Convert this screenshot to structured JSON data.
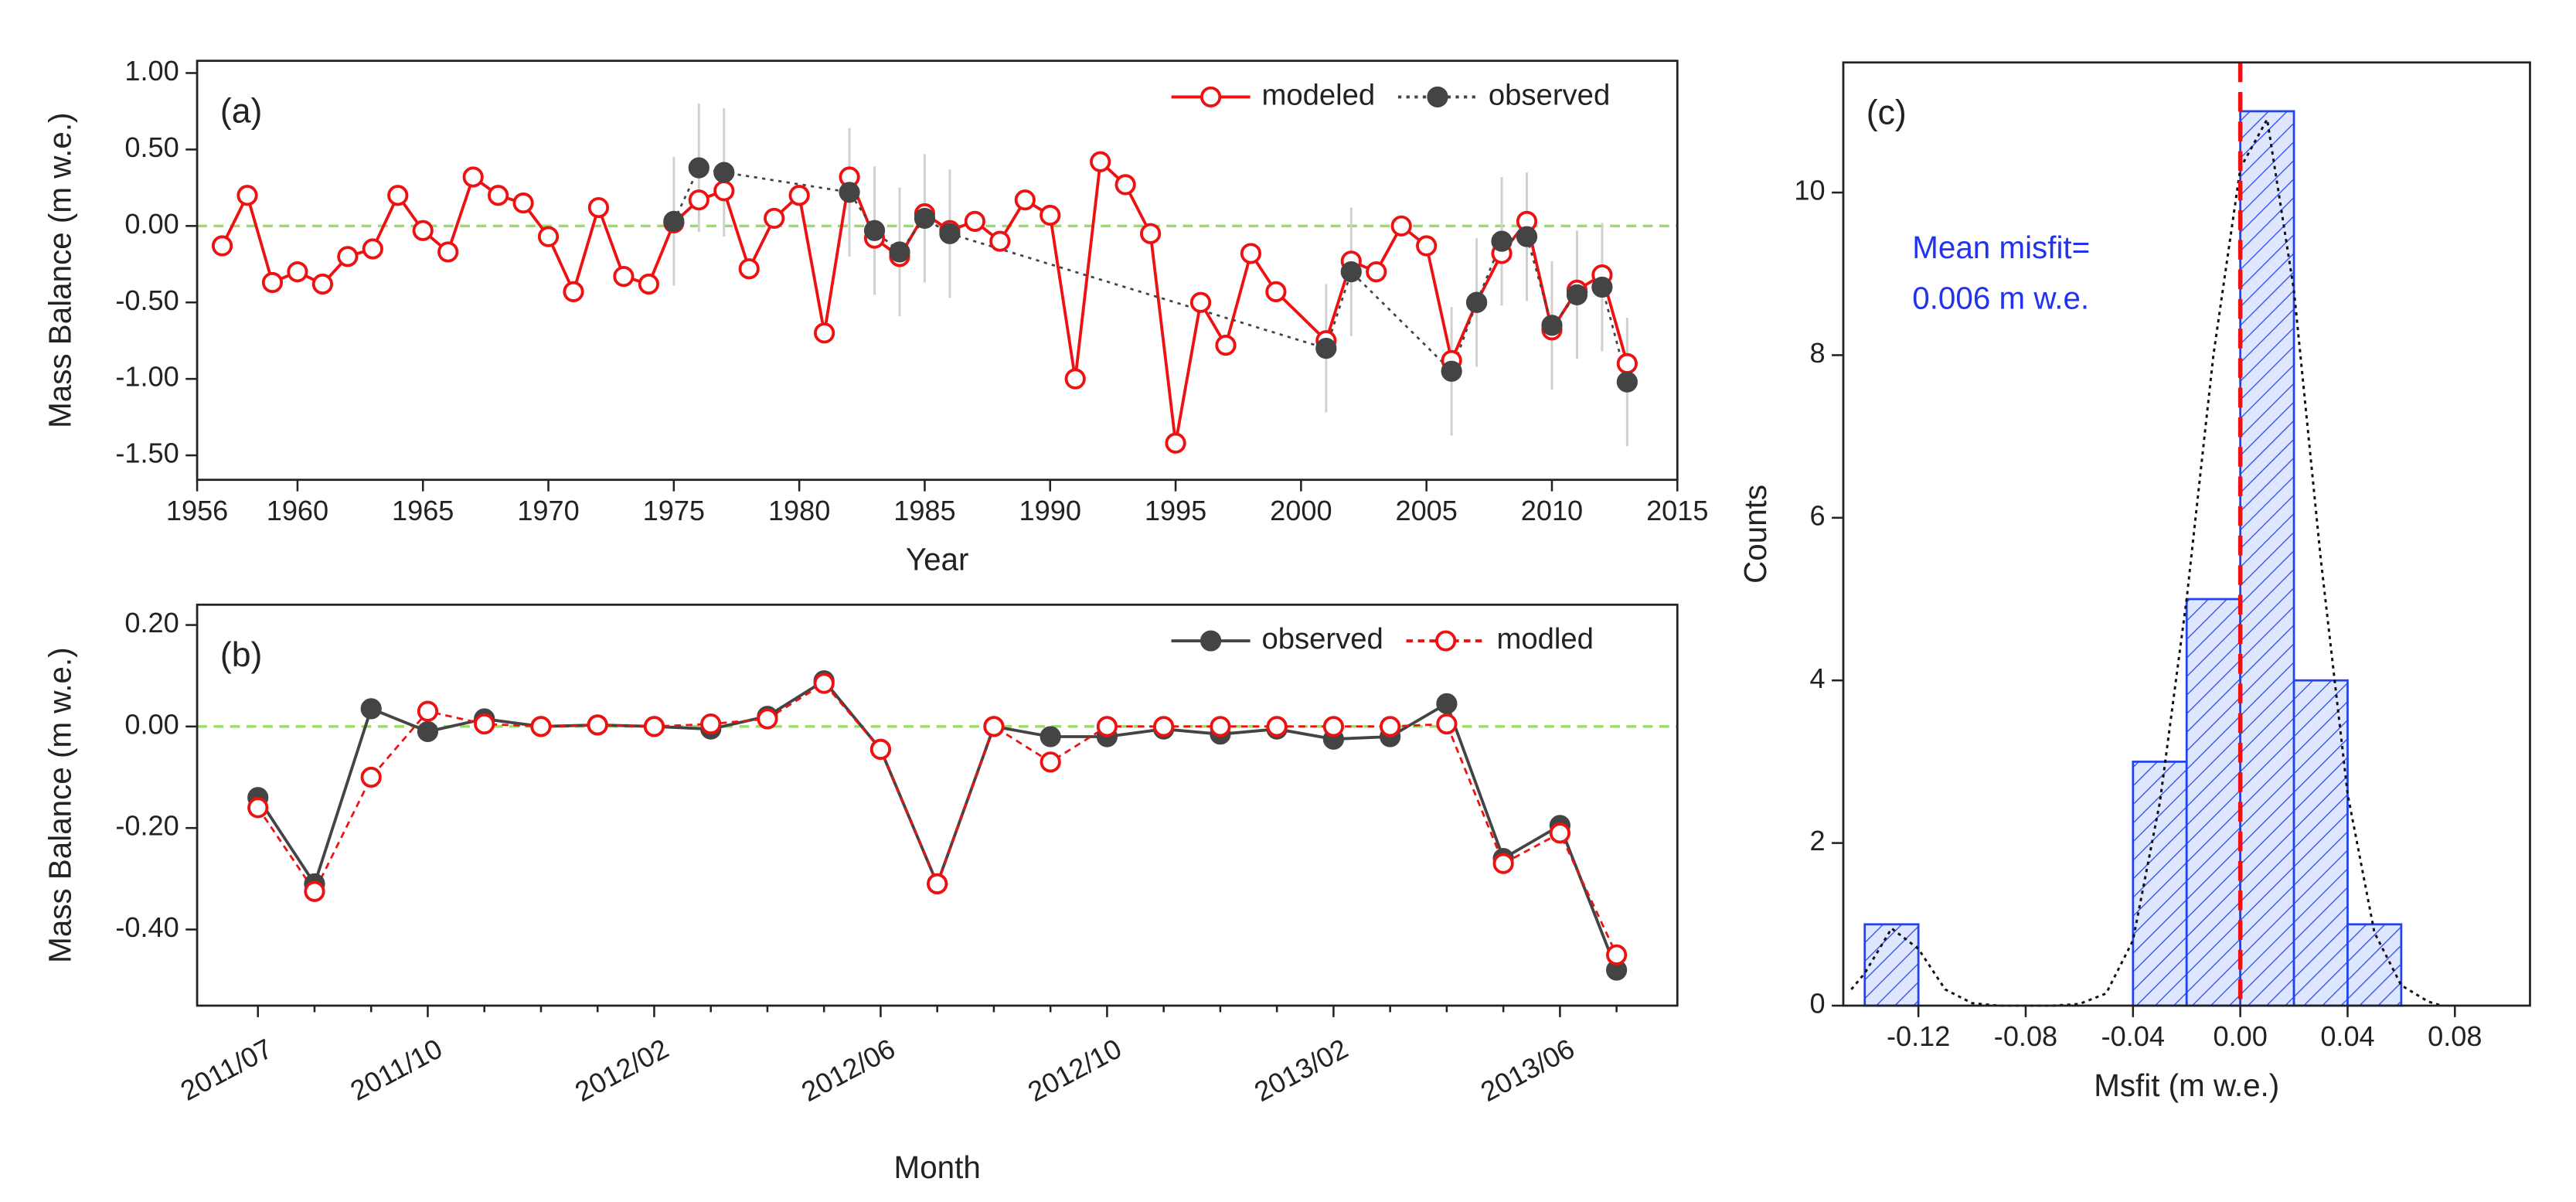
{
  "chart_data": [
    {
      "type": "line",
      "panel_label": "(a)",
      "xlabel": "Year",
      "ylabel": "Mass Balance (m w.e.)",
      "xlim": [
        1956,
        2015
      ],
      "xticks": [
        1956,
        1960,
        1965,
        1970,
        1975,
        1980,
        1985,
        1990,
        1995,
        2000,
        2005,
        2010,
        2015
      ],
      "ylim": [
        -1.66,
        1.08
      ],
      "yticks": [
        {
          "value": 1,
          "label": "1.00"
        },
        {
          "value": 0.5,
          "label": "0.50"
        },
        {
          "value": 0,
          "label": "0.00"
        },
        {
          "value": -0.5,
          "label": "-0.50"
        },
        {
          "value": -1,
          "label": "-1.00"
        },
        {
          "value": -1.5,
          "label": "-1.50"
        }
      ],
      "reference_line": 0,
      "reference_color": "#99dd66",
      "legend": "upper right",
      "series": [
        {
          "name": "modeled",
          "color": "#ee1111",
          "style": "solid",
          "marker": "open",
          "x": [
            1957,
            1958,
            1959,
            1960,
            1961,
            1962,
            1963,
            1964,
            1965,
            1966,
            1967,
            1968,
            1969,
            1970,
            1971,
            1972,
            1973,
            1974,
            1975,
            1976,
            1977,
            1978,
            1979,
            1980,
            1981,
            1982,
            1983,
            1984,
            1985,
            1986,
            1987,
            1988,
            1989,
            1990,
            1991,
            1992,
            1993,
            1994,
            1995,
            1996,
            1997,
            1998,
            1999,
            2001,
            2002,
            2003,
            2004,
            2005,
            2006,
            2007,
            2008,
            2009,
            2010,
            2011,
            2012,
            2013
          ],
          "values": [
            -0.13,
            0.2,
            -0.37,
            -0.3,
            -0.38,
            -0.2,
            -0.15,
            0.2,
            -0.03,
            -0.17,
            0.32,
            0.2,
            0.15,
            -0.07,
            -0.43,
            0.12,
            -0.33,
            -0.38,
            0.02,
            0.17,
            0.23,
            -0.28,
            0.05,
            0.2,
            -0.7,
            0.32,
            -0.08,
            -0.2,
            0.08,
            -0.03,
            0.03,
            -0.1,
            0.17,
            0.07,
            -1.0,
            0.42,
            0.27,
            -0.05,
            -1.42,
            -0.5,
            -0.78,
            -0.18,
            -0.43,
            -0.75,
            -0.23,
            -0.3,
            0.0,
            -0.13,
            -0.88,
            -0.5,
            -0.18,
            0.03,
            -0.68,
            -0.42,
            -0.32,
            -0.9
          ]
        },
        {
          "name": "observed",
          "color": "#444444",
          "style": "dotted",
          "marker": "filled",
          "error_color": "#d0d0d0",
          "x": [
            1975,
            1976,
            1977,
            1982,
            1983,
            1984,
            1985,
            1986,
            2001,
            2002,
            2006,
            2007,
            2008,
            2009,
            2010,
            2011,
            2012,
            2013
          ],
          "values": [
            0.03,
            0.38,
            0.35,
            0.22,
            -0.03,
            -0.17,
            0.05,
            -0.05,
            -0.8,
            -0.3,
            -0.95,
            -0.5,
            -0.1,
            -0.07,
            -0.65,
            -0.45,
            -0.4,
            -1.02
          ],
          "errors": [
            0.42,
            0.42,
            0.42,
            0.42,
            0.42,
            0.42,
            0.42,
            0.42,
            0.42,
            0.42,
            0.42,
            0.42,
            0.42,
            0.42,
            0.42,
            0.42,
            0.42,
            0.42
          ]
        }
      ]
    },
    {
      "type": "line",
      "panel_label": "(b)",
      "xlabel": "Month",
      "ylabel": "Mass Balance (m w.e.)",
      "categories": [
        "2011/07",
        null,
        null,
        "2011/10",
        null,
        null,
        null,
        "2012/02",
        null,
        null,
        null,
        "2012/06",
        null,
        null,
        null,
        "2012/10",
        null,
        null,
        null,
        "2013/02",
        null,
        null,
        null,
        "2013/06",
        null
      ],
      "ylim": [
        -0.55,
        0.24
      ],
      "yticks": [
        {
          "value": 0.2,
          "label": "0.20"
        },
        {
          "value": 0,
          "label": "0.00"
        },
        {
          "value": -0.2,
          "label": "-0.20"
        },
        {
          "value": -0.4,
          "label": "-0.40"
        }
      ],
      "reference_line": 0,
      "reference_color": "#99dd66",
      "legend": "upper right",
      "series": [
        {
          "name": "observed",
          "color": "#444444",
          "style": "solid",
          "marker": "filled",
          "values": [
            -0.14,
            -0.31,
            0.035,
            -0.01,
            0.015,
            0.0,
            0.003,
            0.0,
            -0.005,
            0.02,
            0.09,
            -0.045,
            -0.31,
            0.0,
            -0.02,
            -0.02,
            -0.005,
            -0.015,
            -0.005,
            -0.025,
            -0.02,
            0.045,
            -0.26,
            -0.195,
            -0.48
          ]
        },
        {
          "name": "modled",
          "color": "#ee1111",
          "style": "dashed",
          "marker": "open",
          "values": [
            -0.16,
            -0.325,
            -0.1,
            0.03,
            0.005,
            0.0,
            0.003,
            0.0,
            0.005,
            0.015,
            0.085,
            -0.045,
            -0.31,
            0.0,
            -0.07,
            0.0,
            0.0,
            0.0,
            0.0,
            0.0,
            0.0,
            0.005,
            -0.27,
            -0.21,
            -0.45
          ]
        }
      ]
    },
    {
      "type": "histogram",
      "panel_label": "(c)",
      "xlabel": "Msfit (m w.e.)",
      "ylabel": "Counts",
      "bins": [
        -0.14,
        -0.12,
        -0.1,
        -0.08,
        -0.06,
        -0.04,
        -0.02,
        0,
        0.02,
        0.04,
        0.06
      ],
      "values": [
        1,
        0,
        0,
        0,
        0,
        3,
        5,
        11,
        4,
        1
      ],
      "color": "#2244ee",
      "xlim": [
        -0.148,
        0.108
      ],
      "xticks": [
        -0.12,
        -0.08,
        -0.04,
        {
          "value": 0,
          "label": "0.00"
        },
        0.04,
        0.08
      ],
      "ylim": [
        0,
        11.6
      ],
      "yticks": [
        0,
        2,
        4,
        6,
        8,
        10
      ],
      "vline": 0,
      "vline_color": "#ee1111",
      "fit_curve": {
        "x": [
          -0.145,
          -0.14,
          -0.13,
          -0.12,
          -0.11,
          -0.1,
          -0.09,
          -0.08,
          -0.07,
          -0.06,
          -0.05,
          -0.04,
          -0.03,
          -0.02,
          -0.01,
          0.0,
          0.01,
          0.02,
          0.03,
          0.04,
          0.05,
          0.06,
          0.07,
          0.075
        ],
        "y": [
          0.2,
          0.4,
          0.95,
          0.7,
          0.2,
          0.03,
          0,
          0,
          0,
          0.02,
          0.15,
          0.8,
          2.5,
          5,
          8,
          10.3,
          10.9,
          8.8,
          5.5,
          2.6,
          0.9,
          0.25,
          0.05,
          0
        ]
      },
      "annotation": [
        "Mean misfit=",
        "0.006 m w.e."
      ],
      "annotation_color": "#2233ee"
    }
  ]
}
